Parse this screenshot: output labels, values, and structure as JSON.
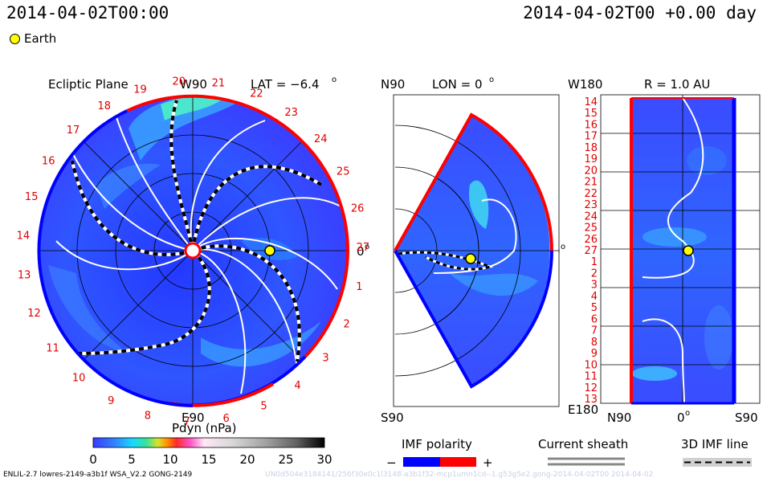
{
  "header": {
    "timestamp_left": "2014-04-02T00:00",
    "timestamp_right": "2014-04-02T00 +0.00 day",
    "earth_legend": "Earth"
  },
  "ecliptic": {
    "title": "Ecliptic Plane",
    "lat_label": "LAT = −6.4",
    "lat_sup": "o",
    "top_label": "W90",
    "bottom_label": "E90",
    "right_label": "0",
    "right_sup": "o",
    "carrington_ticks": [
      "19",
      "20",
      "21",
      "22",
      "23",
      "24",
      "25",
      "26",
      "27",
      "1",
      "2",
      "3",
      "4",
      "5",
      "6",
      "7",
      "8",
      "9",
      "10",
      "11",
      "12",
      "13",
      "14",
      "15",
      "16",
      "17",
      "18"
    ]
  },
  "meridional": {
    "title": "LON = 0",
    "title_sup": "o",
    "top_label": "N90",
    "bottom_label": "S90",
    "right_label": "0",
    "right_sup": "o"
  },
  "sphere": {
    "title": "R = 1.0 AU",
    "top_label": "W180",
    "bottom_label": "E180",
    "bottom_n": "N90",
    "bottom_mid": "0",
    "bottom_mid_sup": "o",
    "bottom_s": "S90",
    "ticks": [
      "14",
      "15",
      "16",
      "17",
      "18",
      "19",
      "20",
      "21",
      "22",
      "23",
      "24",
      "25",
      "26",
      "27",
      "1",
      "2",
      "3",
      "4",
      "5",
      "6",
      "7",
      "8",
      "9",
      "10",
      "11",
      "12",
      "13"
    ]
  },
  "colorbar": {
    "label": "Pdyn (nPa)",
    "ticks": [
      "0",
      "5",
      "10",
      "15",
      "20",
      "25",
      "30"
    ],
    "stops": [
      "#3a3aff",
      "#2f8bff",
      "#19d8ff",
      "#39e39a",
      "#d9e32a",
      "#ff9000",
      "#ff2b2b",
      "#ff55c8",
      "#ffe8f5",
      "#d8d8d8",
      "#a0a0a0",
      "#606060",
      "#000000"
    ]
  },
  "legends": {
    "imf_polarity": "IMF polarity",
    "minus": "−",
    "plus": "+",
    "current_sheath": "Current sheath",
    "imf_3d": "3D IMF line",
    "colors": {
      "negative": "#0000ff",
      "positive": "#ff0000"
    }
  },
  "footer": {
    "left": "ENLIL-2.7 lowres-2149-a3b1f WSA_V2.2 GONG-2149",
    "right": "UN0d504e3184141/256f30e0c1l3148-a3b1f32-mcp1umn1cd--1.g53g5e2.gong-2014-04-02T00 2014-04-02"
  }
}
